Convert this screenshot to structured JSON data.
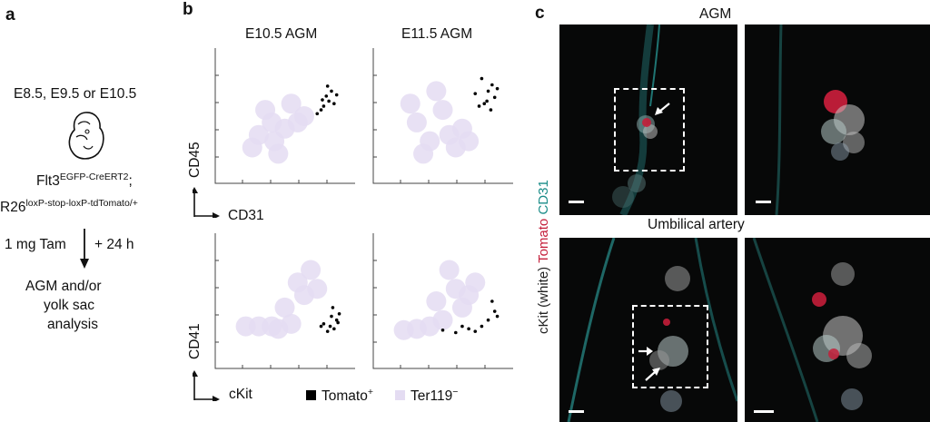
{
  "panels": {
    "a": {
      "letter": "a",
      "stages": "E8.5, E9.5 or E10.5",
      "allele1_base": "Flt3",
      "allele1_sup": "EGFP-CreERT2",
      "allele1_sep": ";",
      "allele2_base": "R26",
      "allele2_sup": "loxP-stop-loxP-tdTomato/+",
      "dose": "1 mg Tam",
      "time": "+ 24 h",
      "analysis_line1": "AGM and/or",
      "analysis_line2": "yolk sac",
      "analysis_line3": "analysis",
      "embryo_icon": "embryo-icon"
    },
    "b": {
      "letter": "b",
      "col1_title": "E10.5 AGM",
      "col2_title": "E11.5 AGM",
      "row1_ylabel": "CD45",
      "row1_xlabel": "CD31",
      "row2_ylabel": "CD41",
      "row2_xlabel": "cKit",
      "legend": [
        {
          "label": "Tomato",
          "sup": "+",
          "color": "#000000"
        },
        {
          "label": "Ter119",
          "sup": "−",
          "color": "#e4dcf2"
        }
      ]
    },
    "c": {
      "letter": "c",
      "row1_title": "AGM",
      "row2_title": "Umbilical artery",
      "side_label_part1": "cKit (white) ",
      "side_label_part2": "Tomato",
      "side_label_part3": " CD31",
      "colors": {
        "tomato": "#c41e3a",
        "cd31": "#1a8c88",
        "ckit": "#222222"
      }
    }
  },
  "chart_data": [
    {
      "type": "scatter",
      "title": "E10.5 AGM",
      "xlabel": "CD31",
      "ylabel": "CD45",
      "series": [
        {
          "name": "Tomato+",
          "color": "#000000",
          "points": [
            [
              0.8,
              0.58
            ],
            [
              0.84,
              0.62
            ],
            [
              0.86,
              0.7
            ],
            [
              0.78,
              0.55
            ],
            [
              0.82,
              0.66
            ],
            [
              0.88,
              0.6
            ],
            [
              0.75,
              0.52
            ],
            [
              0.9,
              0.67
            ],
            [
              0.83,
              0.74
            ],
            [
              0.79,
              0.63
            ]
          ]
        },
        {
          "name": "Ter119−",
          "color": "#e4dcf2",
          "points": [
            [
              0.5,
              0.4
            ],
            [
              0.42,
              0.3
            ],
            [
              0.3,
              0.35
            ],
            [
              0.6,
              0.45
            ],
            [
              0.35,
              0.55
            ],
            [
              0.55,
              0.6
            ],
            [
              0.25,
              0.25
            ],
            [
              0.45,
              0.2
            ],
            [
              0.65,
              0.5
            ],
            [
              0.4,
              0.45
            ]
          ]
        }
      ]
    },
    {
      "type": "scatter",
      "title": "E11.5 AGM",
      "xlabel": "CD31",
      "ylabel": "CD45",
      "series": [
        {
          "name": "Tomato+",
          "color": "#000000",
          "points": [
            [
              0.82,
              0.6
            ],
            [
              0.85,
              0.7
            ],
            [
              0.88,
              0.75
            ],
            [
              0.78,
              0.58
            ],
            [
              0.9,
              0.65
            ],
            [
              0.8,
              0.8
            ],
            [
              0.87,
              0.55
            ],
            [
              0.75,
              0.68
            ],
            [
              0.92,
              0.72
            ],
            [
              0.84,
              0.62
            ]
          ]
        },
        {
          "name": "Ter119−",
          "color": "#e4dcf2",
          "points": [
            [
              0.4,
              0.3
            ],
            [
              0.55,
              0.35
            ],
            [
              0.3,
              0.45
            ],
            [
              0.6,
              0.25
            ],
            [
              0.25,
              0.6
            ],
            [
              0.45,
              0.7
            ],
            [
              0.65,
              0.4
            ],
            [
              0.35,
              0.2
            ],
            [
              0.5,
              0.55
            ],
            [
              0.7,
              0.3
            ]
          ]
        }
      ]
    },
    {
      "type": "scatter",
      "xlabel": "cKit",
      "ylabel": "CD41",
      "series": [
        {
          "name": "Tomato+",
          "color": "#000000",
          "points": [
            [
              0.85,
              0.3
            ],
            [
              0.9,
              0.35
            ],
            [
              0.88,
              0.28
            ],
            [
              0.8,
              0.32
            ],
            [
              0.92,
              0.4
            ],
            [
              0.83,
              0.26
            ],
            [
              0.87,
              0.45
            ],
            [
              0.78,
              0.3
            ],
            [
              0.91,
              0.33
            ],
            [
              0.86,
              0.38
            ]
          ]
        },
        {
          "name": "Ter119−",
          "color": "#e4dcf2",
          "points": [
            [
              0.3,
              0.3
            ],
            [
              0.45,
              0.28
            ],
            [
              0.55,
              0.32
            ],
            [
              0.65,
              0.55
            ],
            [
              0.7,
              0.75
            ],
            [
              0.6,
              0.65
            ],
            [
              0.2,
              0.3
            ],
            [
              0.5,
              0.45
            ],
            [
              0.75,
              0.6
            ],
            [
              0.4,
              0.3
            ]
          ]
        }
      ]
    },
    {
      "type": "scatter",
      "xlabel": "cKit",
      "ylabel": "CD41",
      "series": [
        {
          "name": "Tomato+",
          "color": "#000000",
          "points": [
            [
              0.6,
              0.25
            ],
            [
              0.7,
              0.28
            ],
            [
              0.8,
              0.3
            ],
            [
              0.85,
              0.35
            ],
            [
              0.9,
              0.42
            ],
            [
              0.5,
              0.27
            ],
            [
              0.75,
              0.26
            ],
            [
              0.88,
              0.5
            ],
            [
              0.65,
              0.3
            ],
            [
              0.92,
              0.38
            ]
          ]
        },
        {
          "name": "Ter119−",
          "color": "#e4dcf2",
          "points": [
            [
              0.3,
              0.28
            ],
            [
              0.4,
              0.3
            ],
            [
              0.6,
              0.6
            ],
            [
              0.55,
              0.75
            ],
            [
              0.7,
              0.55
            ],
            [
              0.2,
              0.27
            ],
            [
              0.65,
              0.45
            ],
            [
              0.5,
              0.35
            ],
            [
              0.75,
              0.65
            ],
            [
              0.45,
              0.5
            ]
          ]
        }
      ]
    }
  ]
}
